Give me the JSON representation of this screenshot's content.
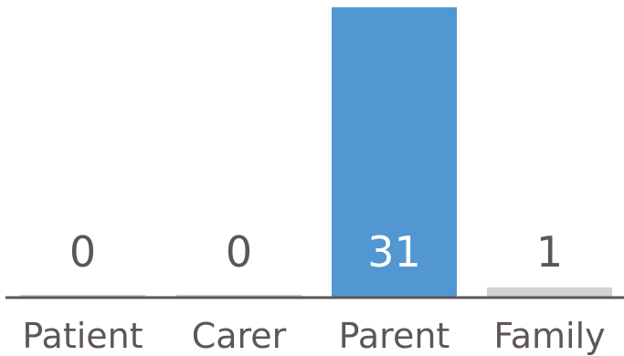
{
  "chart_data": {
    "type": "bar",
    "categories": [
      "Patient",
      "Carer",
      "Parent",
      "Family"
    ],
    "values": [
      0,
      0,
      31,
      1
    ],
    "value_labels": [
      "0",
      "0",
      "31",
      "1"
    ],
    "ylim": [
      0,
      31
    ],
    "grid": false,
    "legend": "none",
    "colors": {
      "highlight": "#5296d2",
      "default": "#d3d3d3",
      "axis": "#5e5656",
      "label": "#5e5656",
      "label_inside": "#ffffff"
    },
    "highlight_index": 2
  }
}
